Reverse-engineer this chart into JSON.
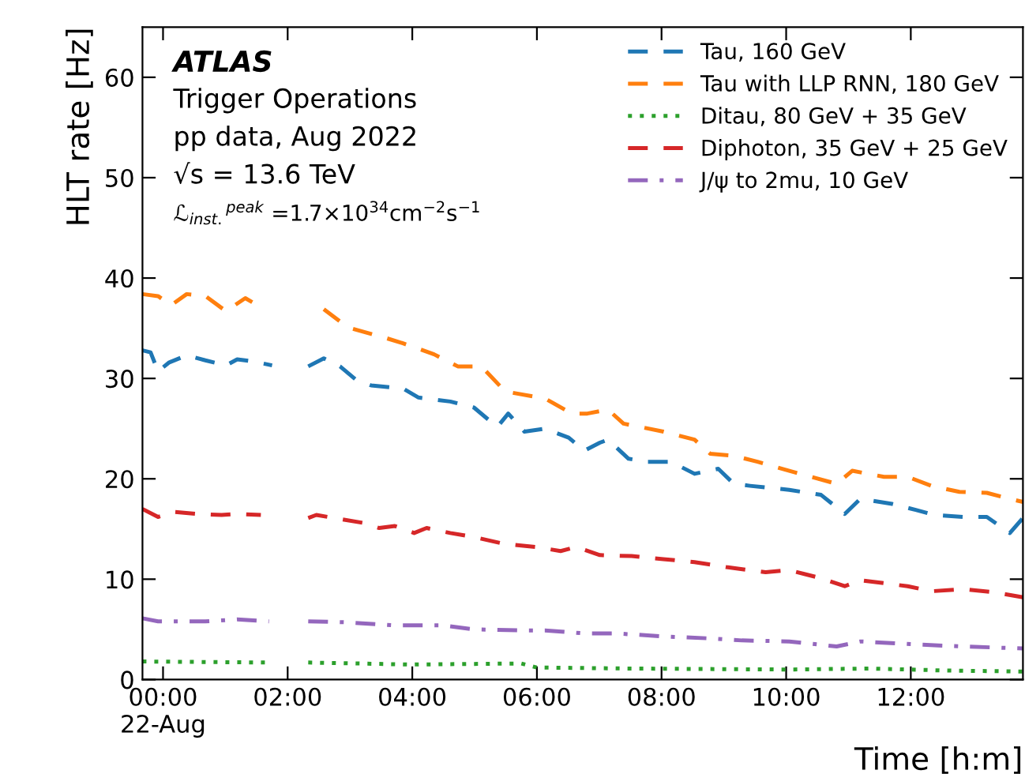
{
  "chart_data": {
    "type": "line",
    "ylabel": "HLT rate [Hz]",
    "xlabel": "Time [h:m]",
    "annotations": [
      "ATLAS",
      "Trigger Operations",
      "pp data, Aug 2022",
      "√s = 13.6 TeV",
      "ℒ$_{inst.}$$^{peak}$ =1.7×10$^{34}$cm$^{−2}$s$^{−1}$"
    ],
    "xlim": [
      -0.33,
      13.8
    ],
    "xticks": [
      {
        "value": 0,
        "label": "00:00\n22-Aug"
      },
      {
        "value": 2,
        "label": "02:00"
      },
      {
        "value": 4,
        "label": "04:00"
      },
      {
        "value": 6,
        "label": "06:00"
      },
      {
        "value": 8,
        "label": "08:00"
      },
      {
        "value": 10,
        "label": "10:00"
      },
      {
        "value": 12,
        "label": "12:00"
      }
    ],
    "ylim": [
      0,
      65
    ],
    "yticks": [
      0,
      10,
      20,
      30,
      40,
      50,
      60
    ],
    "grid": false,
    "legend": "top right",
    "marker": "none",
    "series": [
      {
        "name": "Tau, 160 GeV",
        "color": "#1f77b4",
        "line_style": "dashed",
        "x": [
          -0.33,
          -0.2,
          -0.08,
          0.1,
          0.38,
          0.68,
          1.01,
          1.19,
          1.44,
          1.75,
          2.0,
          2.33,
          2.58,
          2.84,
          3.09,
          3.34,
          3.85,
          4.1,
          4.61,
          4.99,
          5.24,
          5.37,
          5.54,
          5.8,
          6.13,
          6.51,
          6.76,
          7.01,
          7.14,
          7.47,
          7.77,
          8.15,
          8.53,
          8.91,
          9.16,
          9.42,
          10.05,
          10.56,
          10.94,
          11.19,
          11.7,
          12.08,
          12.38,
          12.84,
          13.22,
          13.59,
          13.8
        ],
        "values": [
          32.8,
          32.6,
          30.7,
          31.6,
          32.3,
          31.8,
          31.3,
          31.9,
          31.7,
          31.3,
          null,
          31.2,
          32.0,
          31.2,
          29.9,
          29.3,
          29.0,
          28.1,
          27.7,
          27.1,
          25.8,
          25.2,
          26.5,
          24.7,
          25.0,
          24.1,
          22.8,
          23.6,
          23.9,
          22.0,
          21.7,
          21.7,
          20.5,
          21.0,
          19.5,
          19.3,
          18.9,
          18.4,
          16.5,
          18.0,
          17.5,
          16.9,
          16.4,
          16.2,
          16.2,
          14.6,
          16.1
        ]
      },
      {
        "name": "Tau with LLP RNN, 180 GeV",
        "color": "#ff7f0e",
        "line_style": "dashed",
        "x": [
          -0.33,
          -0.08,
          0.13,
          0.38,
          0.68,
          1.01,
          1.32,
          1.57,
          2.0,
          2.58,
          2.96,
          3.59,
          3.85,
          4.35,
          4.73,
          5.11,
          5.49,
          6.13,
          6.56,
          6.81,
          7.14,
          7.39,
          8.03,
          8.53,
          8.78,
          9.16,
          9.54,
          10.05,
          10.81,
          11.06,
          11.57,
          11.95,
          12.33,
          12.78,
          13.22,
          13.59,
          13.8
        ],
        "values": [
          38.4,
          38.2,
          37.3,
          38.4,
          38.2,
          36.7,
          38.0,
          37.1,
          null,
          36.9,
          35.1,
          34.0,
          33.5,
          32.4,
          31.2,
          31.2,
          28.7,
          28.0,
          26.5,
          26.5,
          26.9,
          25.5,
          24.7,
          23.9,
          22.5,
          22.3,
          21.7,
          20.8,
          19.5,
          20.8,
          20.2,
          20.2,
          19.3,
          18.7,
          18.6,
          18.0,
          17.7
        ]
      },
      {
        "name": "Ditau, 80 GeV + 35 GeV",
        "color": "#2ca02c",
        "line_style": "dotted",
        "x": [
          -0.33,
          1.7,
          2.0,
          2.33,
          3.97,
          5.75,
          6.0,
          7.52,
          10.05,
          11.32,
          12.58,
          13.8
        ],
        "values": [
          1.8,
          1.7,
          null,
          1.7,
          1.5,
          1.6,
          1.2,
          1.1,
          1.0,
          1.1,
          0.9,
          0.8
        ]
      },
      {
        "name": "Diphoton, 35 GeV + 25 GeV",
        "color": "#d62728",
        "line_style": "dashed",
        "x": [
          -0.33,
          -0.08,
          0.18,
          0.56,
          0.94,
          1.19,
          1.57,
          2.0,
          2.33,
          2.46,
          2.84,
          3.22,
          3.47,
          3.72,
          4.03,
          4.23,
          4.61,
          4.99,
          5.49,
          6.0,
          6.38,
          6.63,
          7.01,
          7.52,
          8.03,
          8.53,
          9.04,
          9.67,
          10.05,
          10.56,
          10.94,
          11.19,
          11.57,
          11.95,
          12.33,
          12.84,
          13.34,
          13.8
        ],
        "values": [
          17.0,
          16.2,
          16.7,
          16.5,
          16.4,
          16.5,
          16.4,
          null,
          16.1,
          16.4,
          16.0,
          15.6,
          15.1,
          15.3,
          14.6,
          15.1,
          14.6,
          14.2,
          13.5,
          13.2,
          12.8,
          13.2,
          12.4,
          12.3,
          12.0,
          11.7,
          11.2,
          10.7,
          10.9,
          10.1,
          9.3,
          9.9,
          9.6,
          9.3,
          8.8,
          9.0,
          8.7,
          8.2
        ]
      },
      {
        "name": "J/ψ to 2mu, 10 GeV",
        "color": "#9467bd",
        "line_style": "dashdot",
        "x": [
          -0.33,
          -0.08,
          0.68,
          1.19,
          1.7,
          2.0,
          2.33,
          2.96,
          3.72,
          4.48,
          4.99,
          5.75,
          6.13,
          6.76,
          7.27,
          8.03,
          8.78,
          9.29,
          10.05,
          10.81,
          11.19,
          12.08,
          12.84,
          13.8
        ],
        "values": [
          6.1,
          5.8,
          5.8,
          6.0,
          5.8,
          null,
          5.8,
          5.7,
          5.4,
          5.4,
          5.0,
          4.9,
          4.9,
          4.6,
          4.6,
          4.3,
          4.1,
          3.9,
          3.8,
          3.3,
          3.8,
          3.5,
          3.3,
          3.1
        ]
      }
    ]
  }
}
